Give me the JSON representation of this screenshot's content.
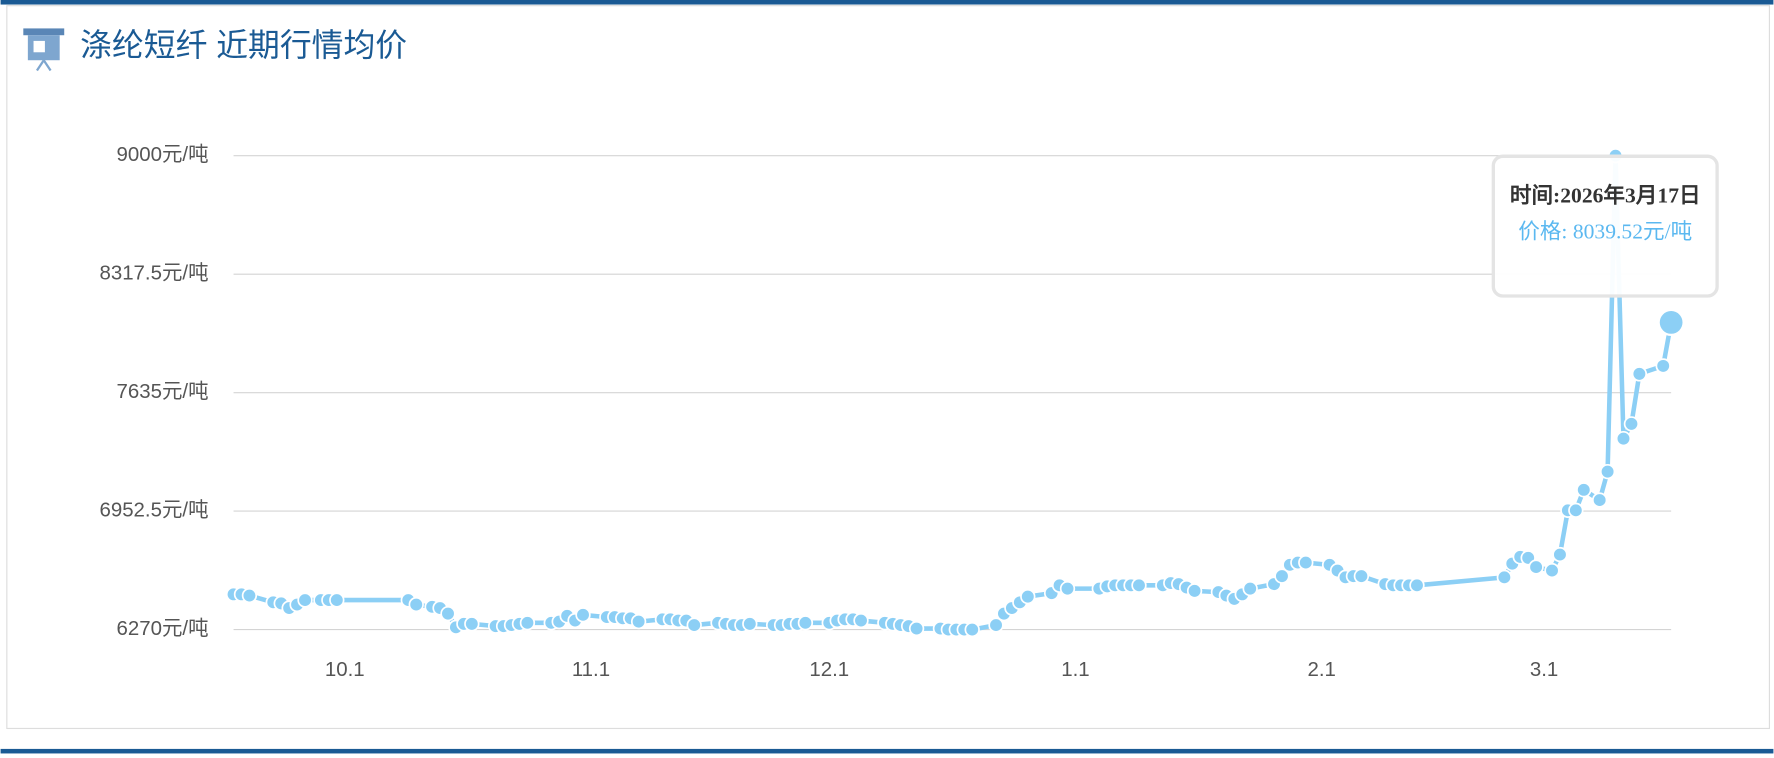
{
  "chart_data": {
    "type": "line",
    "title": "涤纶短纤 近期行情均价",
    "x": [
      -14,
      -13,
      -12,
      -9,
      -8,
      -7,
      -6,
      -5,
      -3,
      -2,
      -1,
      8,
      9,
      11,
      12,
      13,
      14,
      15,
      16,
      19,
      20,
      21,
      22,
      23,
      26,
      27,
      28,
      29,
      30,
      33,
      34,
      35,
      36,
      37,
      40,
      41,
      42,
      43,
      44,
      47,
      48,
      49,
      50,
      51,
      54,
      55,
      56,
      57,
      58,
      61,
      62,
      63,
      64,
      65,
      68,
      69,
      70,
      71,
      72,
      75,
      76,
      77,
      78,
      79,
      82,
      83,
      84,
      85,
      86,
      89,
      90,
      91,
      95,
      96,
      97,
      98,
      99,
      100,
      103,
      104,
      105,
      106,
      107,
      110,
      111,
      112,
      113,
      114,
      117,
      118,
      119,
      120,
      121,
      124,
      125,
      126,
      127,
      128,
      131,
      132,
      133,
      134,
      135,
      146,
      147,
      148,
      149,
      150,
      152,
      153,
      154,
      155,
      156,
      158,
      159,
      160,
      161,
      162,
      163,
      166,
      167
    ],
    "values": [
      6473,
      6473,
      6466,
      6427,
      6421,
      6394,
      6414,
      6440,
      6440,
      6440,
      6440,
      6440,
      6414,
      6401,
      6394,
      6362,
      6283,
      6303,
      6303,
      6290,
      6290,
      6296,
      6303,
      6309,
      6309,
      6316,
      6349,
      6322,
      6355,
      6342,
      6342,
      6335,
      6335,
      6316,
      6329,
      6329,
      6322,
      6322,
      6296,
      6309,
      6303,
      6296,
      6296,
      6303,
      6296,
      6296,
      6303,
      6303,
      6309,
      6309,
      6322,
      6329,
      6329,
      6322,
      6309,
      6303,
      6296,
      6290,
      6276,
      6276,
      6270,
      6270,
      6270,
      6270,
      6296,
      6362,
      6394,
      6427,
      6460,
      6480,
      6525,
      6506,
      6506,
      6519,
      6525,
      6525,
      6525,
      6525,
      6525,
      6538,
      6532,
      6512,
      6493,
      6486,
      6466,
      6447,
      6473,
      6506,
      6532,
      6578,
      6643,
      6656,
      6656,
      6643,
      6610,
      6571,
      6578,
      6578,
      6532,
      6525,
      6525,
      6525,
      6525,
      6571,
      6650,
      6689,
      6683,
      6630,
      6610,
      6702,
      6957,
      6957,
      7075,
      7016,
      7180,
      9000,
      7370,
      7455,
      7743,
      7789,
      8039.52
    ],
    "color": "#8ccff5",
    "xlim": [
      -14,
      167
    ],
    "xticks": [
      {
        "value": 0,
        "label": "10.1"
      },
      {
        "value": 31,
        "label": "11.1"
      },
      {
        "value": 61,
        "label": "12.1"
      },
      {
        "value": 92,
        "label": "1.1"
      },
      {
        "value": 123,
        "label": "2.1"
      },
      {
        "value": 151,
        "label": "3.1"
      }
    ],
    "ylim": [
      6270,
      9000
    ],
    "yticks": [
      {
        "value": 6270,
        "label": "6270元/吨"
      },
      {
        "value": 6952.5,
        "label": "6952.5元/吨"
      },
      {
        "value": 7635,
        "label": "7635元/吨"
      },
      {
        "value": 8317.5,
        "label": "8317.5元/吨"
      },
      {
        "value": 9000,
        "label": "9000元/吨"
      }
    ],
    "grid": true,
    "tooltip": {
      "time": "时间:2026年3月17日",
      "price": "价格: 8039.52元/吨"
    }
  }
}
